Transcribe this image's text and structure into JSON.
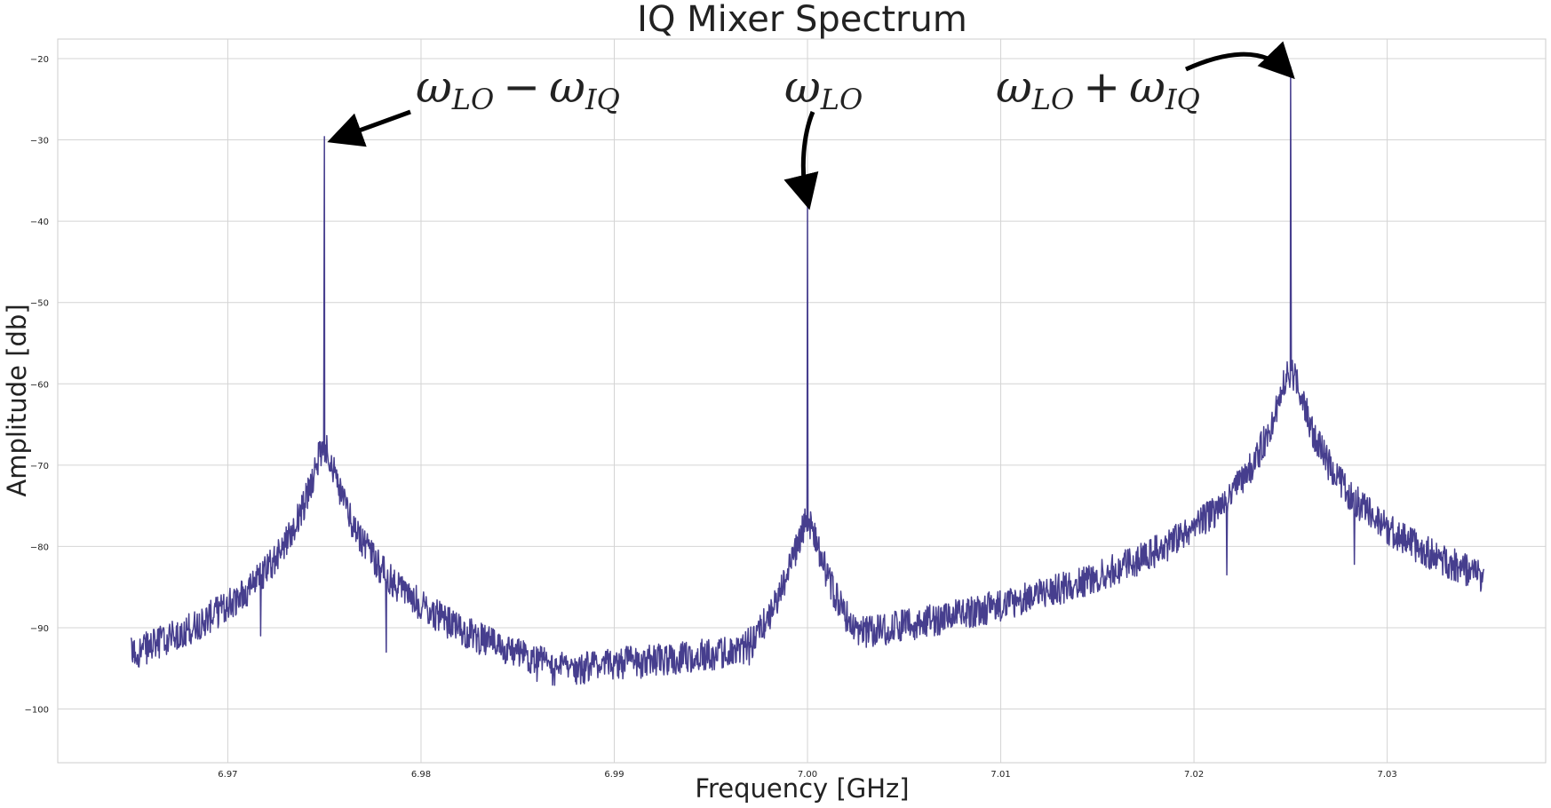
{
  "chart_data": {
    "type": "line",
    "title": "IQ Mixer Spectrum",
    "xlabel": "Frequency [GHz]",
    "ylabel": "Amplitude [db]",
    "xlim": [
      6.9612,
      7.0382
    ],
    "ylim": [
      -106.6,
      -17.6
    ],
    "xticks": [
      6.97,
      6.98,
      6.99,
      7.0,
      7.01,
      7.02,
      7.03
    ],
    "xtick_labels": [
      "6.97",
      "6.98",
      "6.99",
      "7.00",
      "7.01",
      "7.02",
      "7.03"
    ],
    "yticks": [
      -20,
      -30,
      -40,
      -50,
      -60,
      -70,
      -80,
      -90,
      -100
    ],
    "ytick_labels": [
      "−20",
      "−30",
      "−40",
      "−50",
      "−60",
      "−70",
      "−80",
      "−90",
      "−100"
    ],
    "grid": true,
    "line_color": "#463e8e",
    "x_range": [
      6.965,
      7.035
    ],
    "noise_floor": -98,
    "peaks": [
      {
        "x": 6.975,
        "peak": -29.6,
        "shoulder": -68
      },
      {
        "x": 7.0,
        "peak": -38.0,
        "shoulder": -77
      },
      {
        "x": 7.025,
        "peak": -21.0,
        "shoulder": -58.5
      }
    ],
    "spurs": [
      {
        "x": 6.9717,
        "y": -91
      },
      {
        "x": 6.9782,
        "y": -93
      },
      {
        "x": 7.0217,
        "y": -83.5
      },
      {
        "x": 7.0283,
        "y": -82.2
      }
    ],
    "annotations": [
      {
        "base": "ω",
        "sub1": "LO",
        "op": "−",
        "base2": "ω",
        "sub2": "IQ",
        "target_x": 6.9753,
        "target_y": -29.8
      },
      {
        "base": "ω",
        "sub1": "LO",
        "target_x": 7.0,
        "target_y": -38.0
      },
      {
        "base": "ω",
        "sub1": "LO",
        "op": "+",
        "base2": "ω",
        "sub2": "IQ",
        "target_x": 7.025,
        "target_y": -21.3
      }
    ]
  }
}
